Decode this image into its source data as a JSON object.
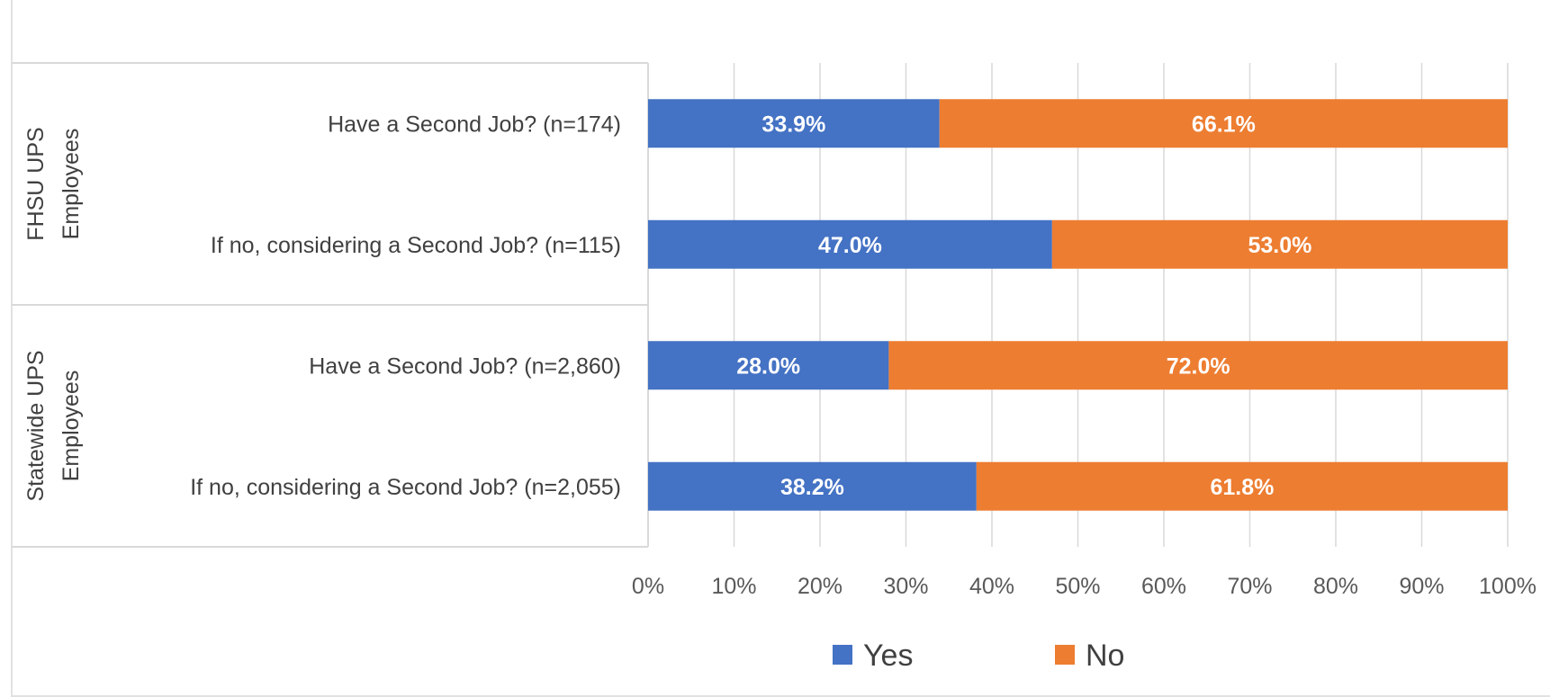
{
  "chart_data": {
    "type": "bar",
    "orientation": "horizontal",
    "stacked": "100%",
    "groups": [
      {
        "name": "FHSU UPS Employees",
        "lines": [
          "FHSU UPS",
          "Employees"
        ],
        "categories": [
          "Have a Second Job? (n=174)",
          "If no, considering a Second Job? (n=115)"
        ]
      },
      {
        "name": "Statewide UPS Employees",
        "lines": [
          "Statewide UPS",
          "Employees"
        ],
        "categories": [
          "Have a Second Job? (n=2,860)",
          "If no, considering a Second Job? (n=2,055)"
        ]
      }
    ],
    "series": [
      {
        "name": "Yes",
        "color": "#4472C4",
        "values": [
          33.9,
          47.0,
          28.0,
          38.2
        ],
        "labels": [
          "33.9%",
          "47.0%",
          "28.0%",
          "38.2%"
        ]
      },
      {
        "name": "No",
        "color": "#ED7D31",
        "values": [
          66.1,
          53.0,
          72.0,
          61.8
        ],
        "labels": [
          "66.1%",
          "53.0%",
          "72.0%",
          "61.8%"
        ]
      }
    ],
    "xlim": [
      0,
      100
    ],
    "xticks": [
      "0%",
      "10%",
      "20%",
      "30%",
      "40%",
      "50%",
      "60%",
      "70%",
      "80%",
      "90%",
      "100%"
    ],
    "grid": true,
    "legend_position": "bottom"
  }
}
